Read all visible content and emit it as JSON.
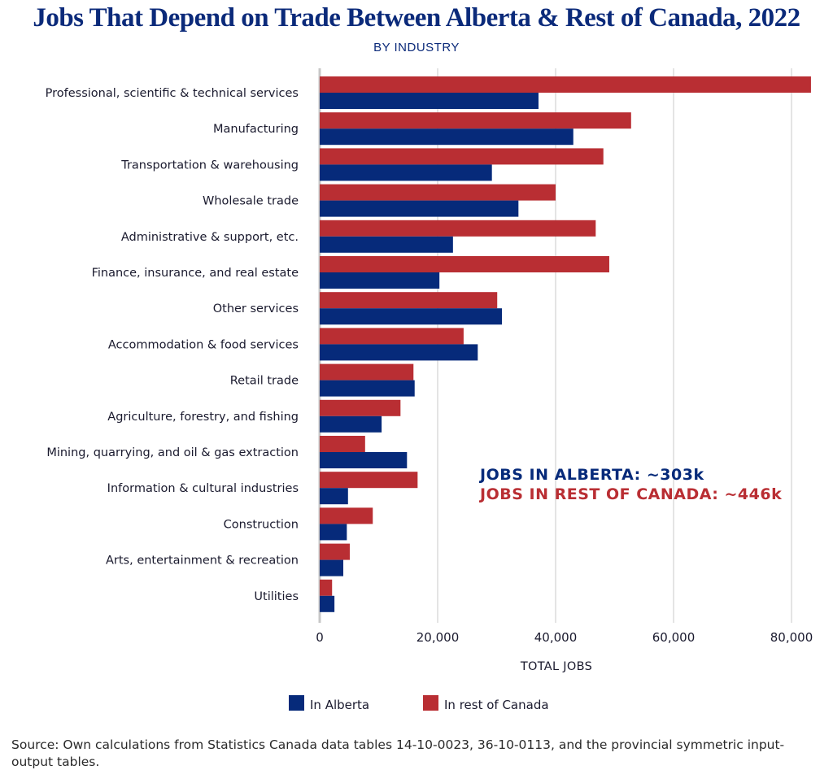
{
  "chart_data": {
    "type": "bar",
    "orientation": "horizontal",
    "title": "Jobs That Depend on Trade Between Alberta & Rest of Canada, 2022",
    "subtitle": "BY INDUSTRY",
    "xlabel": "TOTAL JOBS",
    "ylabel": "",
    "xlim": [
      0,
      83500
    ],
    "xticks": [
      0,
      20000,
      40000,
      60000,
      80000
    ],
    "xtick_labels": [
      "0",
      "20,000",
      "40,000",
      "60,000",
      "80,000"
    ],
    "grid": true,
    "legend_position": "bottom",
    "categories": [
      "Professional, scientific & technical services",
      "Manufacturing",
      "Transportation & warehousing",
      "Wholesale trade",
      "Administrative & support, etc.",
      "Finance, insurance, and real estate",
      "Other services",
      "Accommodation & food services",
      "Retail trade",
      "Agriculture, forestry, and fishing",
      "Mining, quarrying, and oil & gas extraction",
      "Information & cultural industries",
      "Construction",
      "Arts, entertainment & recreation",
      "Utilities"
    ],
    "series": [
      {
        "name": "In rest of Canada",
        "color": "#b92e33",
        "values": [
          83300,
          52800,
          48100,
          40000,
          46800,
          49100,
          30100,
          24400,
          15900,
          13700,
          7700,
          16600,
          9000,
          5100,
          2100
        ]
      },
      {
        "name": "In Alberta",
        "color": "#062a7a",
        "values": [
          37100,
          43000,
          29200,
          33700,
          22600,
          20300,
          30900,
          26800,
          16100,
          10500,
          14800,
          4800,
          4600,
          4000,
          2500
        ]
      }
    ],
    "annotations": [
      {
        "text": "JOBS IN ALBERTA: ~303k",
        "color": "#062a7a"
      },
      {
        "text": "JOBS IN REST OF CANADA: ~446k",
        "color": "#b92e33"
      }
    ],
    "legend": [
      {
        "label": "In Alberta",
        "color": "#062a7a"
      },
      {
        "label": "In rest of Canada",
        "color": "#b92e33"
      }
    ]
  },
  "source": "Source: Own calculations from Statistics Canada data tables 14-10-0023, 36-10-0113, and the provincial symmetric input-output tables."
}
